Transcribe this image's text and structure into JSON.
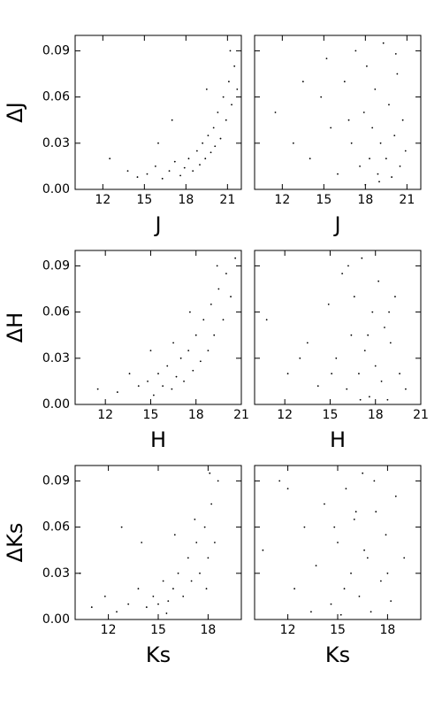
{
  "chart_data": [
    {
      "type": "scatter",
      "xlabel": "J",
      "ylabel": "ΔJ",
      "xlim": [
        10,
        22
      ],
      "ylim": [
        0,
        0.1
      ],
      "xticks": [
        12,
        15,
        18,
        21
      ],
      "yticks": [
        {
          "value": 0,
          "label": "0.00"
        },
        0.03,
        0.06,
        0.09
      ],
      "x": [
        12.5,
        13.8,
        14.5,
        15.2,
        15.8,
        16.3,
        16.8,
        17.2,
        17.6,
        17.9,
        18.2,
        18.5,
        18.8,
        19.0,
        19.2,
        19.4,
        19.6,
        19.8,
        20.0,
        20.1,
        20.3,
        20.5,
        20.7,
        20.9,
        21.1,
        21.3,
        21.5,
        21.7,
        21.2,
        17.0,
        16.0,
        19.5
      ],
      "y": [
        0.02,
        0.012,
        0.008,
        0.01,
        0.015,
        0.007,
        0.012,
        0.018,
        0.009,
        0.014,
        0.02,
        0.012,
        0.025,
        0.016,
        0.03,
        0.02,
        0.035,
        0.024,
        0.04,
        0.028,
        0.05,
        0.033,
        0.06,
        0.045,
        0.07,
        0.055,
        0.08,
        0.065,
        0.09,
        0.045,
        0.03,
        0.065
      ]
    },
    {
      "type": "scatter",
      "xlabel": "J",
      "xlim": [
        10,
        22
      ],
      "ylim": [
        0,
        0.1
      ],
      "xticks": [
        12,
        15,
        18,
        21
      ],
      "yticks": [
        0,
        0.03,
        0.06,
        0.09
      ],
      "x": [
        11.5,
        12.8,
        14.0,
        14.8,
        15.5,
        16.0,
        16.5,
        17.0,
        17.3,
        17.6,
        17.9,
        18.1,
        18.3,
        18.5,
        18.7,
        18.9,
        19.1,
        19.3,
        19.5,
        19.7,
        19.9,
        20.1,
        20.3,
        20.5,
        20.7,
        20.9,
        19.0,
        18.0,
        16.8,
        15.2,
        13.5,
        20.2
      ],
      "y": [
        0.05,
        0.03,
        0.02,
        0.06,
        0.04,
        0.01,
        0.07,
        0.03,
        0.09,
        0.015,
        0.05,
        0.08,
        0.02,
        0.04,
        0.065,
        0.01,
        0.03,
        0.095,
        0.02,
        0.055,
        0.008,
        0.035,
        0.075,
        0.015,
        0.045,
        0.025,
        0.005,
        0.003,
        0.045,
        0.085,
        0.07,
        0.088
      ]
    },
    {
      "type": "scatter",
      "xlabel": "H",
      "ylabel": "ΔH",
      "xlim": [
        10,
        21
      ],
      "ylim": [
        0,
        0.1
      ],
      "xticks": [
        12,
        15,
        18,
        21
      ],
      "yticks": [
        {
          "value": 0,
          "label": "0.00"
        },
        0.03,
        0.06,
        0.09
      ],
      "x": [
        11.5,
        12.8,
        13.6,
        14.2,
        14.8,
        15.2,
        15.5,
        15.8,
        16.1,
        16.4,
        16.7,
        17.0,
        17.2,
        17.5,
        17.8,
        18.0,
        18.3,
        18.5,
        18.8,
        19.0,
        19.2,
        19.5,
        19.8,
        20.0,
        20.3,
        20.6,
        17.6,
        16.5,
        19.4,
        15.0
      ],
      "y": [
        0.01,
        0.008,
        0.02,
        0.012,
        0.015,
        0.006,
        0.02,
        0.012,
        0.025,
        0.01,
        0.018,
        0.03,
        0.015,
        0.035,
        0.022,
        0.045,
        0.028,
        0.055,
        0.035,
        0.065,
        0.045,
        0.075,
        0.055,
        0.085,
        0.07,
        0.095,
        0.06,
        0.04,
        0.09,
        0.035
      ]
    },
    {
      "type": "scatter",
      "xlabel": "H",
      "xlim": [
        10,
        21
      ],
      "ylim": [
        0,
        0.1
      ],
      "xticks": [
        12,
        15,
        18,
        21
      ],
      "yticks": [
        0,
        0.03,
        0.06,
        0.09
      ],
      "x": [
        10.8,
        12.2,
        13.5,
        14.2,
        14.9,
        15.4,
        15.8,
        16.1,
        16.4,
        16.6,
        16.9,
        17.1,
        17.3,
        17.6,
        17.8,
        18.0,
        18.2,
        18.4,
        18.6,
        18.8,
        19.0,
        19.3,
        19.6,
        20.0,
        16.2,
        17.5,
        15.1,
        18.9,
        17.0,
        13.0
      ],
      "y": [
        0.055,
        0.02,
        0.04,
        0.012,
        0.065,
        0.03,
        0.085,
        0.01,
        0.045,
        0.07,
        0.02,
        0.095,
        0.035,
        0.005,
        0.06,
        0.025,
        0.08,
        0.015,
        0.05,
        0.003,
        0.04,
        0.07,
        0.02,
        0.01,
        0.09,
        0.045,
        0.02,
        0.06,
        0.003,
        0.03
      ]
    },
    {
      "type": "scatter",
      "xlabel": "Ks",
      "ylabel": "ΔKs",
      "xlim": [
        10,
        20
      ],
      "ylim": [
        0,
        0.1
      ],
      "xticks": [
        12,
        15,
        18
      ],
      "yticks": [
        {
          "value": 0,
          "label": "0.00"
        },
        0.03,
        0.06,
        0.09
      ],
      "x": [
        10.3,
        11.0,
        11.8,
        12.5,
        13.2,
        13.8,
        14.3,
        14.7,
        15.0,
        15.3,
        15.6,
        15.9,
        16.2,
        16.5,
        16.8,
        17.0,
        17.3,
        17.5,
        17.8,
        18.0,
        18.2,
        18.4,
        18.6,
        17.2,
        16.0,
        14.0,
        12.8,
        18.1,
        17.9,
        15.5
      ],
      "y": [
        0.03,
        0.008,
        0.015,
        0.005,
        0.01,
        0.02,
        0.008,
        0.015,
        0.01,
        0.025,
        0.012,
        0.02,
        0.03,
        0.015,
        0.04,
        0.025,
        0.05,
        0.03,
        0.06,
        0.04,
        0.075,
        0.05,
        0.09,
        0.065,
        0.055,
        0.05,
        0.06,
        0.095,
        0.02,
        0.004
      ]
    },
    {
      "type": "scatter",
      "xlabel": "Ks",
      "xlim": [
        10,
        20
      ],
      "ylim": [
        0,
        0.1
      ],
      "xticks": [
        12,
        15,
        18
      ],
      "yticks": [
        0,
        0.03,
        0.06,
        0.09
      ],
      "x": [
        10.5,
        11.5,
        12.4,
        13.0,
        13.7,
        14.2,
        14.6,
        15.0,
        15.2,
        15.5,
        15.8,
        16.0,
        16.3,
        16.5,
        16.8,
        17.0,
        17.3,
        17.6,
        17.9,
        18.2,
        18.5,
        19.0,
        15.4,
        16.6,
        17.2,
        14.8,
        13.4,
        12.0,
        18.0,
        16.1
      ],
      "y": [
        0.045,
        0.09,
        0.02,
        0.06,
        0.035,
        0.075,
        0.01,
        0.05,
        0.003,
        0.085,
        0.03,
        0.065,
        0.015,
        0.095,
        0.04,
        0.005,
        0.07,
        0.025,
        0.055,
        0.012,
        0.08,
        0.04,
        0.02,
        0.045,
        0.09,
        0.06,
        0.005,
        0.085,
        0.03,
        0.07
      ]
    }
  ]
}
